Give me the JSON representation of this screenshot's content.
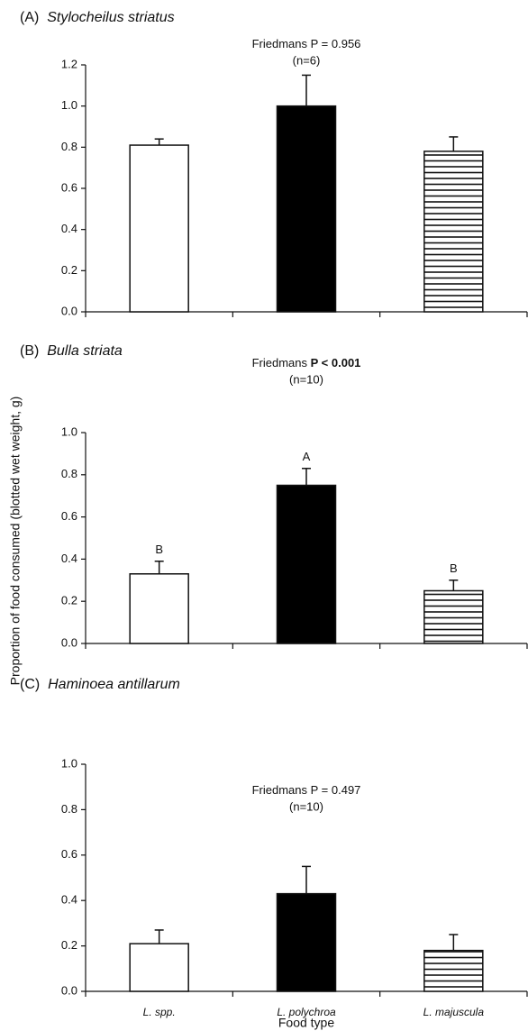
{
  "shared": {
    "ylabel": "Proportion of food consumed (blotted wet weight, g)",
    "xlabel": "Food type",
    "bar_styles": [
      "white",
      "black",
      "stripes"
    ]
  },
  "chart_data": [
    {
      "type": "bar",
      "panel": "(A)",
      "title": "Stylocheilus striatus",
      "stat_prefix": "Friedmans",
      "stat": "P = 0.956",
      "stat_bold": false,
      "n_label": "(n=6)",
      "values": [
        0.81,
        1.0,
        0.78
      ],
      "errors": [
        0.03,
        0.15,
        0.07
      ],
      "ylim": [
        0,
        1.2
      ],
      "yticks": [
        {
          "value": 0,
          "label": "0.0"
        },
        0.2,
        0.4,
        0.6,
        0.8,
        {
          "value": 1,
          "label": "1.0"
        },
        1.2
      ]
    },
    {
      "type": "bar",
      "panel": "(B)",
      "title": "Bulla striata",
      "stat_prefix": "Friedmans",
      "stat": "P < 0.001",
      "stat_bold": true,
      "n_label": "(n=10)",
      "values": [
        0.33,
        0.75,
        0.25
      ],
      "errors": [
        0.06,
        0.08,
        0.05
      ],
      "letters": [
        "B",
        "A",
        "B"
      ],
      "ylim": [
        0,
        1.0
      ],
      "yticks": [
        {
          "value": 0,
          "label": "0.0"
        },
        0.2,
        0.4,
        0.6,
        0.8,
        {
          "value": 1,
          "label": "1.0"
        }
      ]
    },
    {
      "type": "bar",
      "panel": "(C)",
      "title": "Haminoea antillarum",
      "stat_prefix": "Friedmans",
      "stat": "P = 0.497",
      "stat_bold": false,
      "n_label": "(n=10)",
      "categories": [
        "L. spp.",
        "L. polychroa",
        "L. majuscula"
      ],
      "values": [
        0.21,
        0.43,
        0.18
      ],
      "errors": [
        0.06,
        0.12,
        0.07
      ],
      "ylim": [
        0,
        1.0
      ],
      "yticks": [
        {
          "value": 0,
          "label": "0.0"
        },
        0.2,
        0.4,
        0.6,
        0.8,
        {
          "value": 1,
          "label": "1.0"
        }
      ]
    }
  ]
}
